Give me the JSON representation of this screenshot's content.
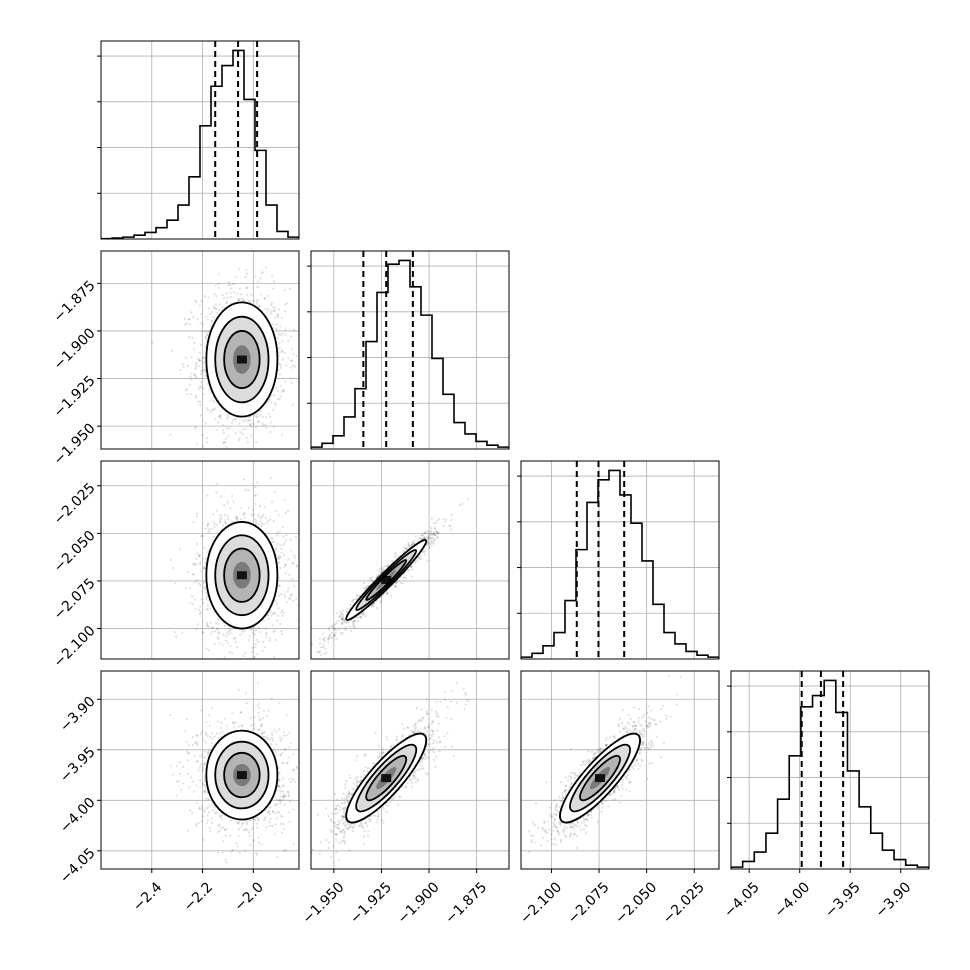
{
  "chart_data": {
    "type": "corner",
    "grid": true,
    "parameters": [
      {
        "name": "",
        "range": [
          -2.6,
          -1.82
        ],
        "ticks": [
          -2.4,
          -2.2,
          -2.0
        ],
        "tick_labels": [
          "−2.4",
          "−2.2",
          "−2.0"
        ],
        "quantiles": [
          -2.15,
          -2.06,
          -1.985
        ],
        "hist": [
          0.002,
          0.005,
          0.01,
          0.02,
          0.035,
          0.06,
          0.1,
          0.18,
          0.33,
          0.6,
          0.81,
          0.92,
          1.0,
          0.74,
          0.47,
          0.18,
          0.04,
          0.01
        ]
      },
      {
        "name": "",
        "range": [
          -1.962,
          -1.858
        ],
        "ticks": [
          -1.95,
          -1.925,
          -1.9,
          -1.875
        ],
        "tick_labels": [
          "−1.950",
          "−1.925",
          "−1.900",
          "−1.875"
        ],
        "quantiles": [
          -1.9345,
          -1.9225,
          -1.9085
        ],
        "hist": [
          0.01,
          0.03,
          0.07,
          0.17,
          0.32,
          0.57,
          0.83,
          0.98,
          1.0,
          0.86,
          0.71,
          0.48,
          0.29,
          0.14,
          0.08,
          0.04,
          0.02,
          0.01
        ]
      },
      {
        "name": "",
        "range": [
          -2.116,
          -2.012
        ],
        "ticks": [
          -2.1,
          -2.075,
          -2.05,
          -2.025
        ],
        "tick_labels": [
          "−2.100",
          "−2.075",
          "−2.050",
          "−2.025"
        ],
        "quantiles": [
          -2.0867,
          -2.0753,
          -2.0618
        ],
        "hist": [
          0.01,
          0.03,
          0.07,
          0.14,
          0.31,
          0.58,
          0.83,
          0.95,
          1.0,
          0.87,
          0.72,
          0.52,
          0.29,
          0.14,
          0.08,
          0.04,
          0.02,
          0.01
        ]
      },
      {
        "name": "",
        "range": [
          -4.068,
          -3.872
        ],
        "ticks": [
          -4.05,
          -4.0,
          -3.95,
          -3.9
        ],
        "tick_labels": [
          "−4.05",
          "−4.00",
          "−3.95",
          "−3.90"
        ],
        "quantiles": [
          -3.998,
          -3.979,
          -3.957
        ],
        "hist": [
          0.01,
          0.04,
          0.09,
          0.19,
          0.37,
          0.6,
          0.86,
          0.92,
          1.0,
          0.83,
          0.52,
          0.33,
          0.19,
          0.1,
          0.05,
          0.02,
          0.01
        ]
      }
    ],
    "pairs": [
      {
        "x": 0,
        "y": 1,
        "center": [
          -2.045,
          -1.915
        ],
        "sd": [
          0.07,
          0.015
        ],
        "corr": 0.0
      },
      {
        "x": 0,
        "y": 2,
        "center": [
          -2.045,
          -2.072
        ],
        "sd": [
          0.07,
          0.014
        ],
        "corr": 0.0
      },
      {
        "x": 0,
        "y": 3,
        "center": [
          -2.045,
          -3.975
        ],
        "sd": [
          0.07,
          0.022
        ],
        "corr": 0.0
      },
      {
        "x": 1,
        "y": 2,
        "center": [
          -1.9225,
          -2.0745
        ],
        "sd": [
          0.0105,
          0.0105
        ],
        "corr": 0.97
      },
      {
        "x": 1,
        "y": 3,
        "center": [
          -1.9225,
          -3.978
        ],
        "sd": [
          0.0105,
          0.022
        ],
        "corr": 0.85
      },
      {
        "x": 2,
        "y": 3,
        "center": [
          -2.0745,
          -3.978
        ],
        "sd": [
          0.0105,
          0.022
        ],
        "corr": 0.85
      }
    ],
    "hist_y_ticks": 4
  }
}
